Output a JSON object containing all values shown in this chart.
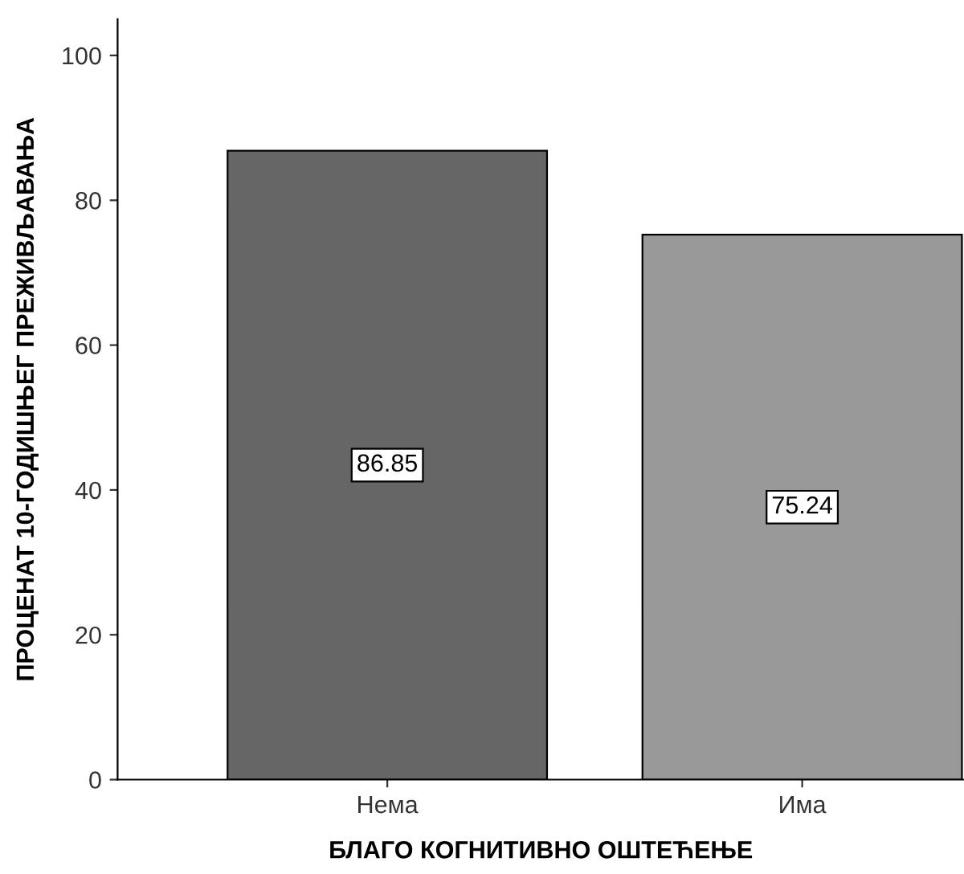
{
  "chart_data": {
    "type": "bar",
    "xlabel": "БЛАГО КОГНИТИВНО ОШТЕЋЕЊЕ",
    "ylabel": "ПРОЦЕНАТ 10-ГОДИШЊЕГ ПРЕЖИВЉАВАЊА",
    "categories": [
      "Нема",
      "Има"
    ],
    "values": [
      86.85,
      75.24
    ],
    "colors": [
      "#666666",
      "#999999"
    ],
    "ylim": [
      0,
      105
    ],
    "yticks": [
      0,
      20,
      40,
      60,
      80,
      100
    ],
    "data_labels": true,
    "grid": false
  }
}
